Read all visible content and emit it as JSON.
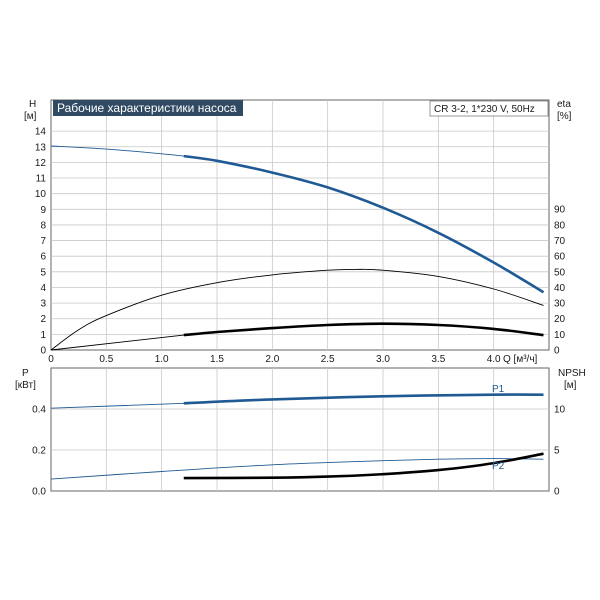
{
  "title": "Рабочие характеристики насоса",
  "pump_info": "CR 3-2, 1*230 V, 50Hz",
  "colors": {
    "title_bg": "#2f4a62",
    "blue": "#1f5a94",
    "black": "#000000",
    "grid": "#c8c8c8"
  },
  "chart_data": [
    {
      "type": "line",
      "xlabel": "Q [м³/ч]",
      "x_ticks": [
        "0",
        "0.5",
        "1.0",
        "1.5",
        "2.0",
        "2.5",
        "3.0",
        "3.5",
        "4.0"
      ],
      "xlim": [
        0,
        4.5
      ],
      "left_axis": {
        "label_line1": "H",
        "label_line2": "[м]",
        "ylim": [
          0,
          15
        ],
        "ticks": [
          "0",
          "1",
          "2",
          "3",
          "4",
          "5",
          "6",
          "7",
          "8",
          "9",
          "10",
          "11",
          "12",
          "13",
          "14"
        ]
      },
      "right_axis": {
        "label_line1": "eta",
        "label_line2": "[%]",
        "ylim": [
          0,
          100
        ],
        "ticks": [
          "0",
          "10",
          "20",
          "30",
          "40",
          "50",
          "60",
          "70",
          "80",
          "90"
        ]
      },
      "series": [
        {
          "axis": "left",
          "color": "#1f5a94",
          "x": [
            0,
            0.5,
            1.0,
            1.2,
            1.5,
            2.0,
            2.5,
            3.0,
            3.5,
            4.0,
            4.45
          ],
          "y": [
            13.05,
            12.85,
            12.55,
            12.4,
            12.1,
            11.35,
            10.4,
            9.1,
            7.5,
            5.6,
            3.7
          ],
          "bold_from": 1.2
        },
        {
          "axis": "right",
          "color": "#000000",
          "x": [
            0,
            0.25,
            0.5,
            1.0,
            1.5,
            2.0,
            2.5,
            2.75,
            3.0,
            3.5,
            4.0,
            4.45
          ],
          "y": [
            0,
            13,
            22,
            35,
            43,
            48,
            51,
            51.5,
            51,
            47,
            39,
            28.5
          ]
        },
        {
          "axis": "left",
          "color": "#000000",
          "x": [
            0,
            1.2,
            1.5,
            2.0,
            2.5,
            3.0,
            3.5,
            4.0,
            4.45
          ],
          "y": [
            0,
            0.95,
            1.15,
            1.4,
            1.6,
            1.68,
            1.6,
            1.35,
            0.95
          ],
          "bold_from": 1.2
        }
      ]
    },
    {
      "type": "line",
      "left_axis": {
        "label_line1": "P",
        "label_line2": "[кВт]",
        "ylim": [
          0,
          0.52
        ],
        "ticks": [
          "0.0",
          "0.2",
          "0.4"
        ]
      },
      "right_axis": {
        "label_line1": "NPSH",
        "label_line2": "[м]",
        "ylim": [
          0,
          13
        ],
        "ticks": [
          "0",
          "5",
          "10"
        ]
      },
      "series": [
        {
          "name": "P1",
          "axis": "left",
          "color": "#1f5a94",
          "x": [
            0,
            1.2,
            2.0,
            3.0,
            4.0,
            4.45
          ],
          "y": [
            0.404,
            0.428,
            0.447,
            0.462,
            0.47,
            0.47
          ],
          "bold_from": 1.2
        },
        {
          "name": "P2",
          "axis": "left",
          "color": "#1f5a94",
          "x": [
            0,
            1.0,
            2.0,
            3.0,
            3.5,
            4.0,
            4.45
          ],
          "y": [
            0.058,
            0.095,
            0.128,
            0.148,
            0.155,
            0.158,
            0.155
          ]
        },
        {
          "axis": "right",
          "color": "#000000",
          "x": [
            1.2,
            2.0,
            2.5,
            3.0,
            3.5,
            4.0,
            4.45
          ],
          "y": [
            1.57,
            1.62,
            1.75,
            2.05,
            2.55,
            3.4,
            4.55
          ],
          "bold_from": 1.2
        }
      ]
    }
  ]
}
